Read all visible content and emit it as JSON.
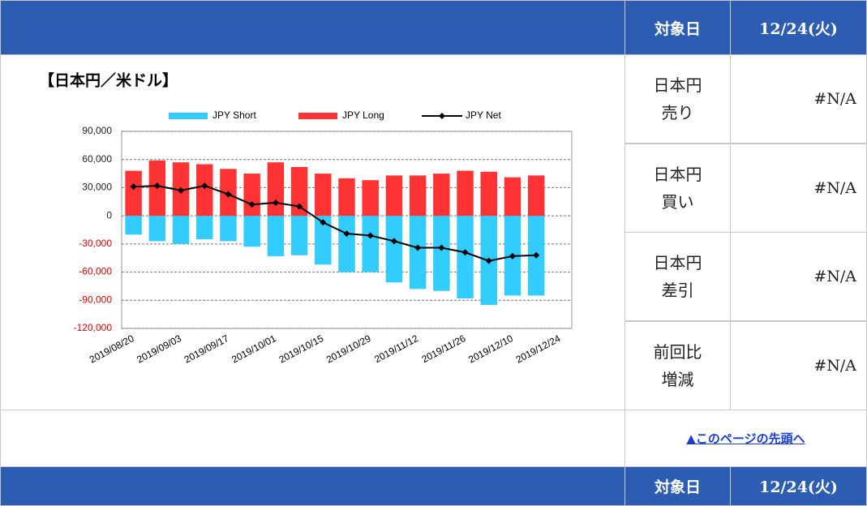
{
  "header": {
    "date_label": "対象日",
    "date_value": "12/24(火)"
  },
  "chart_data": {
    "type": "bar",
    "title": "【日本円／米ドル】",
    "categories": [
      "2019/08/20",
      null,
      "2019/09/03",
      null,
      "2019/09/17",
      null,
      "2019/10/01",
      null,
      "2019/10/15",
      null,
      "2019/10/29",
      null,
      "2019/11/12",
      null,
      "2019/11/26",
      null,
      "2019/12/10",
      null,
      "2019/12/24"
    ],
    "series": [
      {
        "name": "JPY Short",
        "type": "bar",
        "color": "#33ccff",
        "values": [
          -20000,
          -27000,
          -30000,
          -25000,
          -27000,
          -33000,
          -43000,
          -42000,
          -52000,
          -60000,
          -60000,
          -71000,
          -78000,
          -80000,
          -88000,
          -95000,
          -85000,
          -85000,
          null
        ]
      },
      {
        "name": "JPY Long",
        "type": "bar",
        "color": "#ff3333",
        "values": [
          48000,
          59000,
          57000,
          55000,
          50000,
          45000,
          57000,
          52000,
          45000,
          40000,
          38000,
          43000,
          43000,
          45000,
          48000,
          47000,
          41000,
          43000,
          null
        ]
      },
      {
        "name": "JPY Net",
        "type": "line",
        "color": "#000000",
        "values": [
          31000,
          32000,
          27000,
          32000,
          23000,
          12000,
          14000,
          10000,
          -7000,
          -19000,
          -21000,
          -27000,
          -34000,
          -34000,
          -39000,
          -48000,
          -43000,
          -42000,
          null
        ]
      }
    ],
    "ylim": [
      -120000,
      90000
    ],
    "yticks": [
      {
        "value": 90000,
        "label": "90,000"
      },
      {
        "value": 60000,
        "label": "60,000"
      },
      {
        "value": 30000,
        "label": "30,000"
      },
      0,
      {
        "value": -30000,
        "label": "-30,000"
      },
      {
        "value": -60000,
        "label": "-60,000"
      },
      {
        "value": -90000,
        "label": "-90,000"
      },
      {
        "value": -120000,
        "label": "-120,000"
      }
    ],
    "grid": true
  },
  "rows": [
    {
      "label": [
        "日本円",
        "売り"
      ],
      "value": "#N/A"
    },
    {
      "label": [
        "日本円",
        "買い"
      ],
      "value": "#N/A"
    },
    {
      "label": [
        "日本円",
        "差引"
      ],
      "value": "#N/A"
    },
    {
      "label": [
        "前回比",
        "増減"
      ],
      "value": "#N/A"
    }
  ],
  "link": "▲このページの先頭へ",
  "footer": {
    "date_label": "対象日",
    "date_value": "12/24(火)"
  }
}
